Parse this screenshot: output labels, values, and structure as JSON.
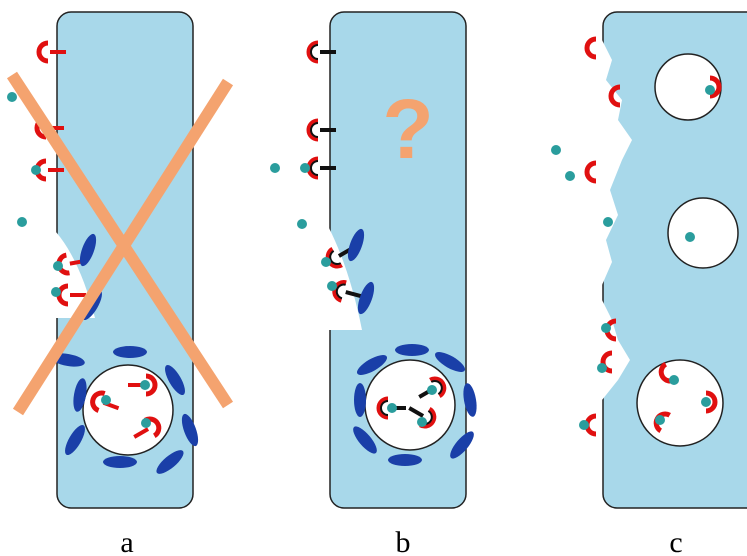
{
  "panels": [
    {
      "label": "a"
    },
    {
      "label": "b",
      "mark": "?"
    },
    {
      "label": "c"
    }
  ]
}
